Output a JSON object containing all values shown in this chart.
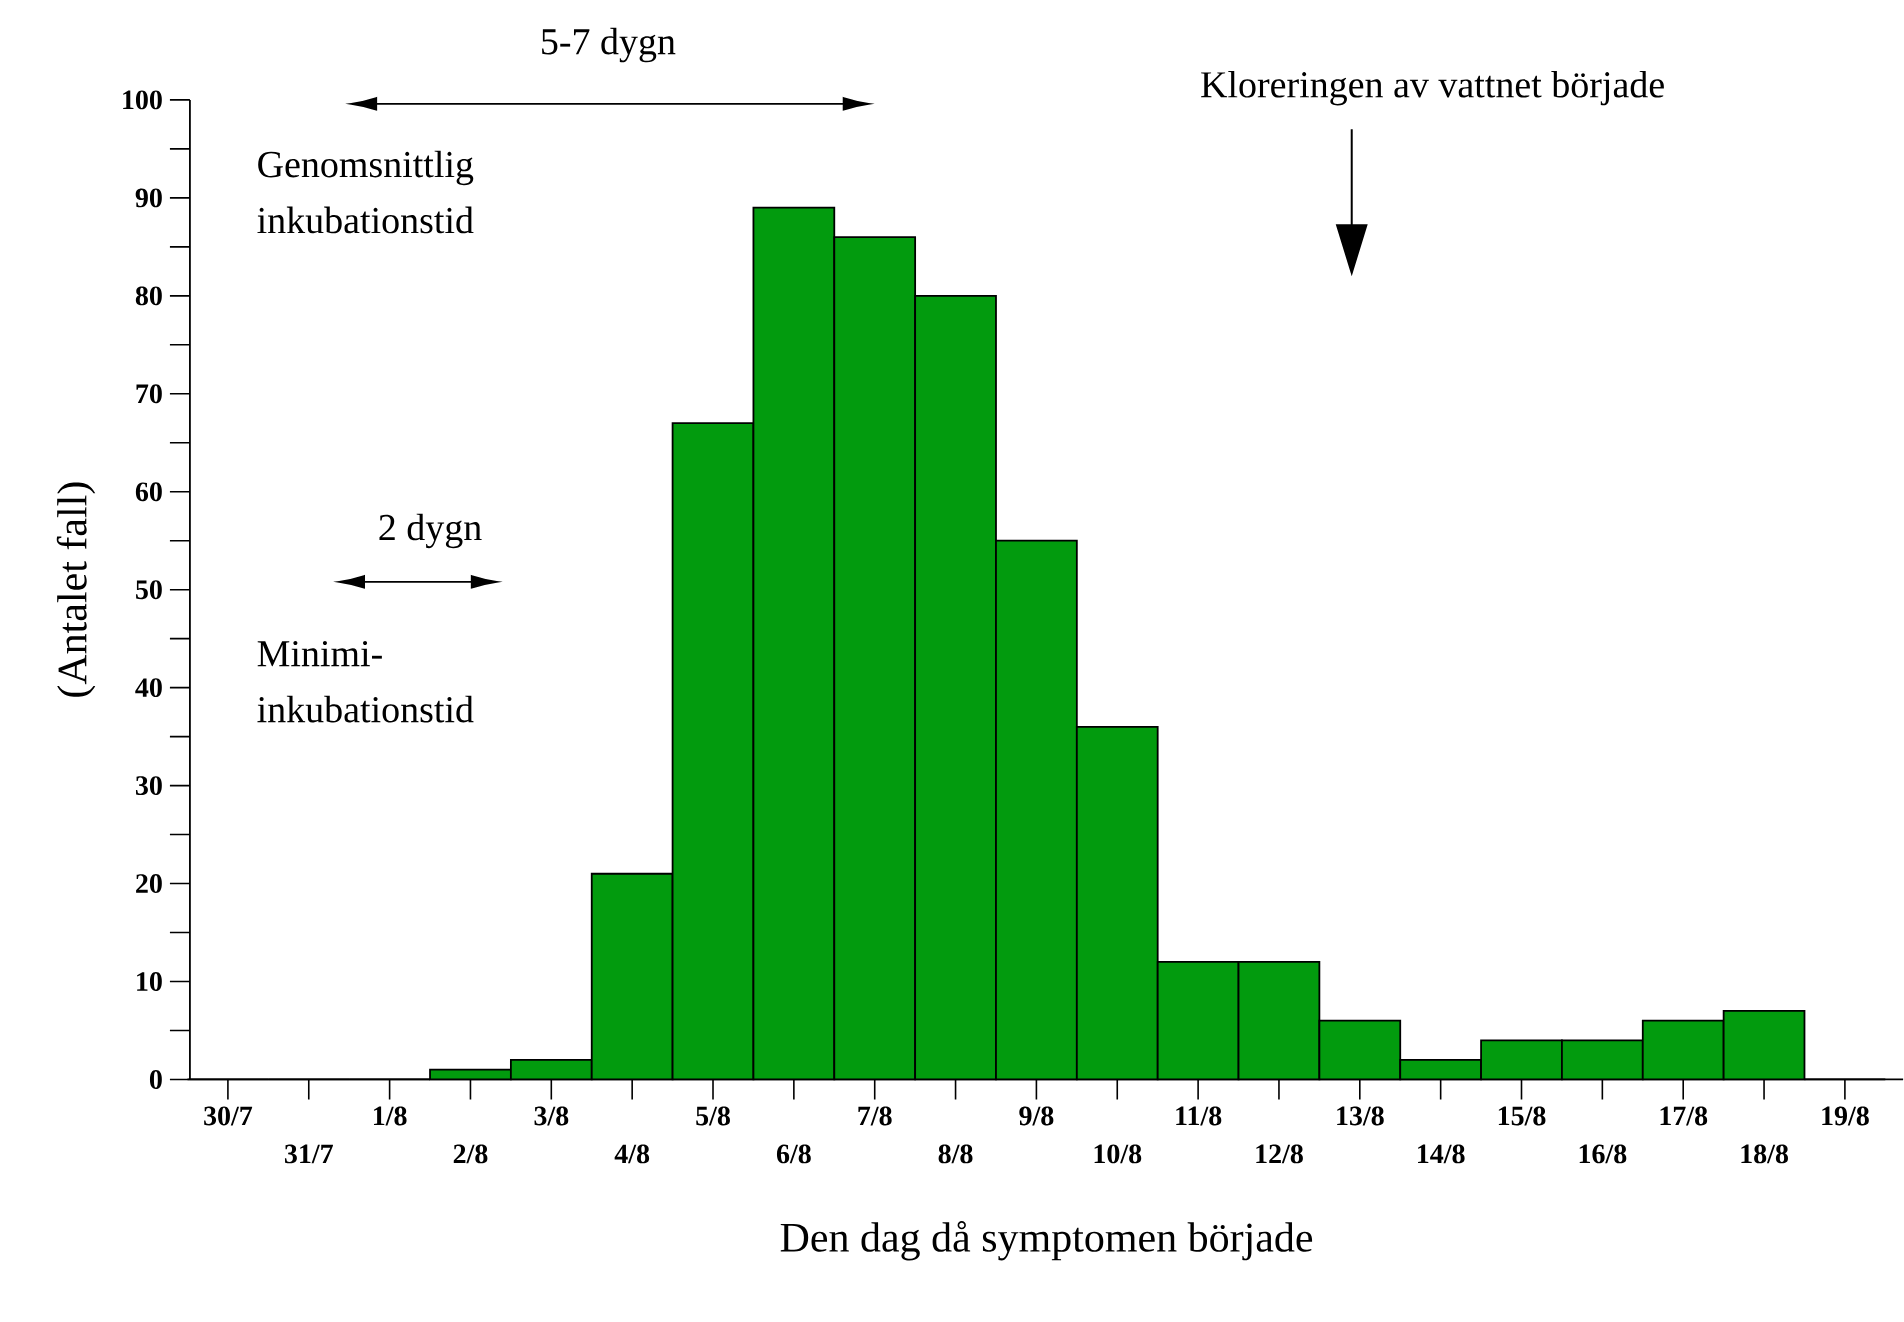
{
  "chart_data": {
    "type": "bar",
    "categories": [
      "30/7",
      "31/7",
      "1/8",
      "2/8",
      "3/8",
      "4/8",
      "5/8",
      "6/8",
      "7/8",
      "8/8",
      "9/8",
      "10/8",
      "11/8",
      "12/8",
      "13/8",
      "14/8",
      "15/8",
      "16/8",
      "17/8",
      "18/8",
      "19/8"
    ],
    "values": [
      0,
      0,
      0,
      1,
      2,
      21,
      67,
      89,
      86,
      80,
      55,
      36,
      12,
      12,
      6,
      2,
      4,
      4,
      6,
      7,
      0
    ],
    "color": "#029b0e",
    "xlabel": "Den dag då symptomen började",
    "ylabel": "(Antalet fall)",
    "ylim": [
      0,
      100
    ],
    "yticks": [
      0,
      10,
      20,
      30,
      40,
      50,
      60,
      70,
      80,
      90,
      100
    ],
    "annotations": [
      "5-7 dygn",
      "Genomsnittlig inkubationstid",
      "2 dygn",
      "Minimi-inkubationstid",
      "Kloreringen av vattnet började"
    ]
  }
}
